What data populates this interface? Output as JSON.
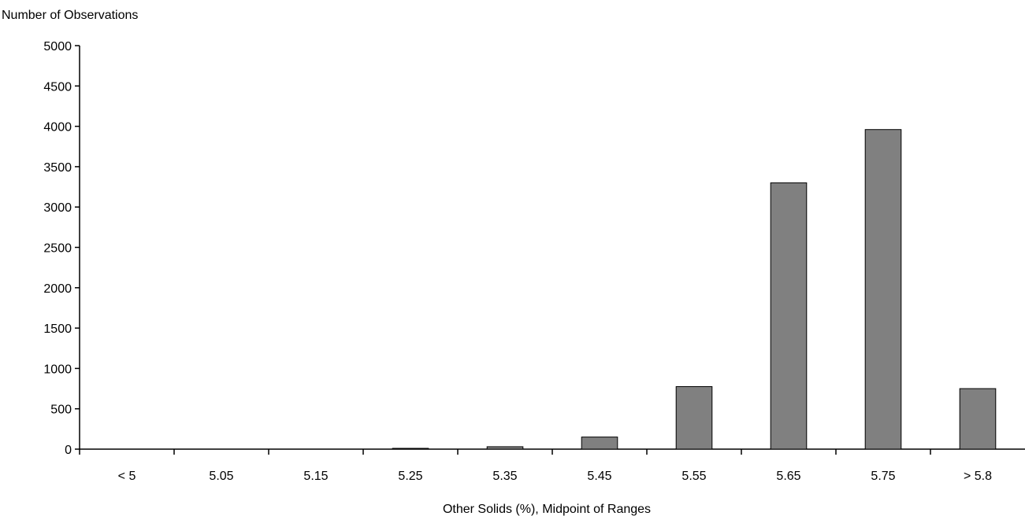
{
  "chart_data": {
    "type": "bar",
    "title": "",
    "ylabel": "Number of Observations",
    "xlabel": "Other Solids (%), Midpoint of Ranges",
    "categories": [
      "< 5",
      "5.05",
      "5.15",
      "5.25",
      "5.35",
      "5.45",
      "5.55",
      "5.65",
      "5.75",
      "> 5.8"
    ],
    "values": [
      0,
      0,
      0,
      10,
      30,
      150,
      775,
      3300,
      3960,
      750
    ],
    "ylim": [
      0,
      5000
    ],
    "yticks": [
      0,
      500,
      1000,
      1500,
      2000,
      2500,
      3000,
      3500,
      4000,
      4500,
      5000
    ],
    "grid": false,
    "legend": "none",
    "bar_color": "#808080",
    "bar_edge_color": "#000000"
  }
}
